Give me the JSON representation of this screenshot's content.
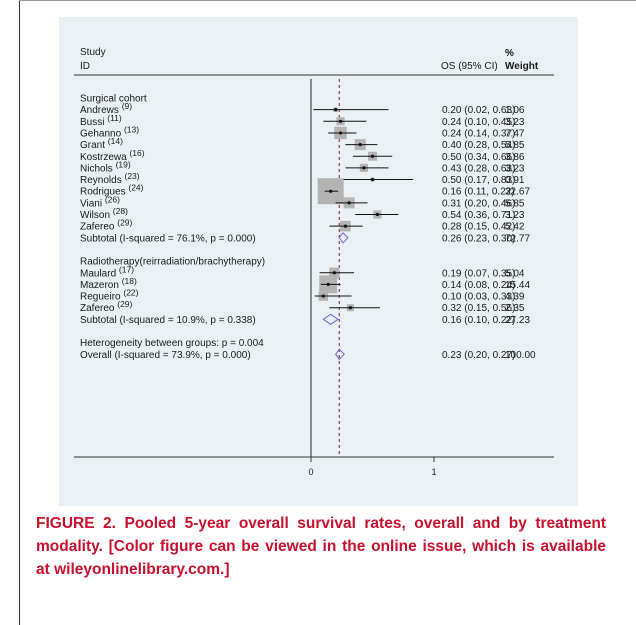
{
  "caption": "FIGURE 2. Pooled 5-year overall survival rates, overall and by treatment modality. [Color figure can be viewed in the online issue, which is available at wileyonlinelibrary.com.]",
  "colors": {
    "panel": "#e9f1f5",
    "box": "#b3b3b3",
    "ci": "#111111",
    "ref_line": "#a0306a",
    "diamond": "#6a6acd",
    "caption": "#c8102e"
  },
  "chart_data": {
    "type": "forest",
    "header": {
      "study": "Study",
      "id": "ID",
      "effect": "OS (95% CI)",
      "weight_pct": "%",
      "weight": "Weight"
    },
    "xlim": [
      0,
      1
    ],
    "ticks": [
      0,
      1
    ],
    "tick_labels": [
      "0",
      "1"
    ],
    "pooled_reference": 0.23,
    "rows": [
      {
        "kind": "group",
        "label": "Surgical cohort"
      },
      {
        "kind": "study",
        "name": "Andrews",
        "ref": "(9)",
        "est": 0.2,
        "lo": 0.02,
        "hi": 0.63,
        "text": "0.20 (0.02, 0.63)",
        "weight": "1.06"
      },
      {
        "kind": "study",
        "name": "Bussi",
        "ref": "(11)",
        "est": 0.24,
        "lo": 0.1,
        "hi": 0.45,
        "text": "0.24 (0.10, 0.45)",
        "weight": "3.23"
      },
      {
        "kind": "study",
        "name": "Gehanno",
        "ref": "(13)",
        "est": 0.24,
        "lo": 0.14,
        "hi": 0.37,
        "text": "0.24 (0.14, 0.37)",
        "weight": "7.47"
      },
      {
        "kind": "study",
        "name": "Grant",
        "ref": "(14)",
        "est": 0.4,
        "lo": 0.28,
        "hi": 0.54,
        "text": "0.40 (0.28, 0.54)",
        "weight": "5.85"
      },
      {
        "kind": "study",
        "name": "Kostrzewa",
        "ref": "(16)",
        "est": 0.5,
        "lo": 0.34,
        "hi": 0.66,
        "text": "0.50 (0.34, 0.66)",
        "weight": "3.86"
      },
      {
        "kind": "study",
        "name": "Nichols",
        "ref": "(19)",
        "est": 0.43,
        "lo": 0.28,
        "hi": 0.63,
        "text": "0.43 (0.28, 0.63)",
        "weight": "3.23"
      },
      {
        "kind": "study",
        "name": "Reynolds",
        "ref": "(23)",
        "est": 0.5,
        "lo": 0.17,
        "hi": 0.83,
        "text": "0.50 (0.17, 0.83)",
        "weight": "0.91"
      },
      {
        "kind": "study",
        "name": "Rodrigues",
        "ref": "(24)",
        "est": 0.16,
        "lo": 0.11,
        "hi": 0.22,
        "text": "0.16 (0.11, 0.22)",
        "weight": "32.67"
      },
      {
        "kind": "study",
        "name": "Viani",
        "ref": "(26)",
        "est": 0.31,
        "lo": 0.2,
        "hi": 0.46,
        "text": "0.31 (0.20, 0.46)",
        "weight": "5.85"
      },
      {
        "kind": "study",
        "name": "Wilson",
        "ref": "(28)",
        "est": 0.54,
        "lo": 0.36,
        "hi": 0.71,
        "text": "0.54 (0.36, 0.71)",
        "weight": "3.23"
      },
      {
        "kind": "study",
        "name": "Zafereo",
        "ref": "(29)",
        "est": 0.28,
        "lo": 0.15,
        "hi": 0.42,
        "text": "0.28 (0.15, 0.42)",
        "weight": "5.42"
      },
      {
        "kind": "subtotal",
        "label": "Subtotal  (I-squared = 76.1%, p = 0.000)",
        "est": 0.26,
        "lo": 0.23,
        "hi": 0.3,
        "text": "0.26 (0.23, 0.30)",
        "weight": "72.77"
      },
      {
        "kind": "gap"
      },
      {
        "kind": "group",
        "label": "Radiotherapy(reirradiation/brachytherapy)"
      },
      {
        "kind": "study",
        "name": "Maulard",
        "ref": "(17)",
        "est": 0.19,
        "lo": 0.07,
        "hi": 0.35,
        "text": "0.19 (0.07, 0.35)",
        "weight": "5.04"
      },
      {
        "kind": "study",
        "name": "Mazeron",
        "ref": "(18)",
        "est": 0.14,
        "lo": 0.08,
        "hi": 0.24,
        "text": "0.14 (0.08, 0.24)",
        "weight": "15.44"
      },
      {
        "kind": "study",
        "name": "Regueiro",
        "ref": "(22)",
        "est": 0.1,
        "lo": 0.03,
        "hi": 0.33,
        "text": "0.10 (0.03, 0.33)",
        "weight": "4.39"
      },
      {
        "kind": "study",
        "name": "Zafereo",
        "ref": "(29)",
        "est": 0.32,
        "lo": 0.15,
        "hi": 0.56,
        "text": "0.32 (0.15, 0.56)",
        "weight": "2.35"
      },
      {
        "kind": "subtotal",
        "label": "Subtotal  (I-squared = 10.9%, p = 0.338)",
        "est": 0.16,
        "lo": 0.1,
        "hi": 0.22,
        "text": "0.16 (0.10, 0.22)",
        "weight": "27.23"
      },
      {
        "kind": "gap"
      },
      {
        "kind": "note",
        "label": "Heterogeneity between groups: p = 0.004"
      },
      {
        "kind": "overall",
        "label": "Overall  (I-squared = 73.9%, p = 0.000)",
        "est": 0.23,
        "lo": 0.2,
        "hi": 0.27,
        "text": "0.23 (0.20, 0.27)",
        "weight": "100.00"
      }
    ]
  }
}
